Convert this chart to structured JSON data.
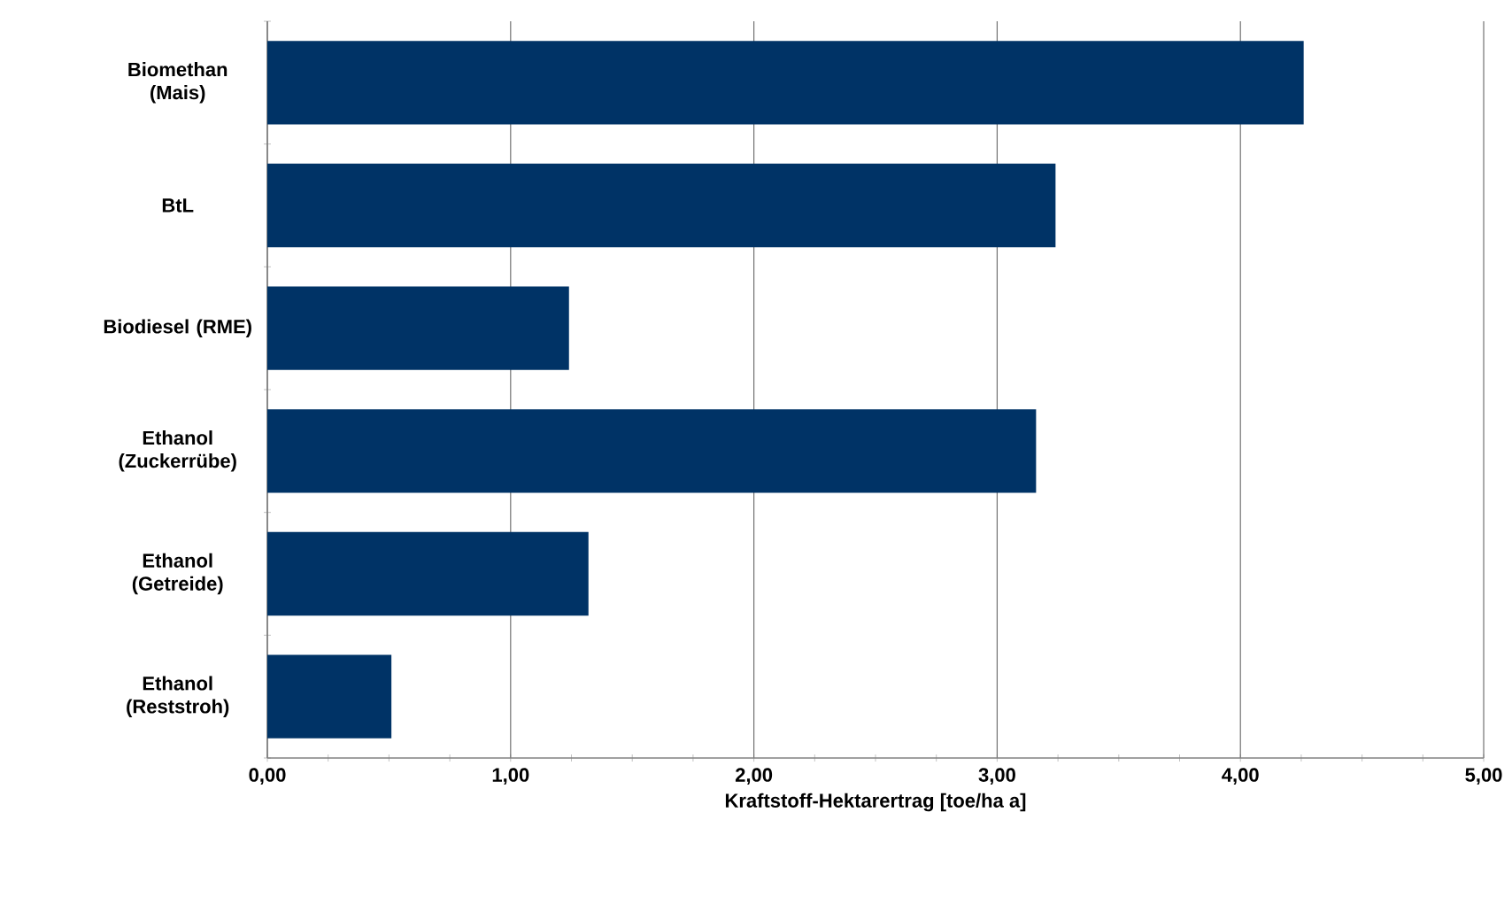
{
  "chart_data": {
    "type": "bar",
    "orientation": "horizontal",
    "xlabel": "Kraftstoff-Hektarertrag [toe/ha a]",
    "categories": [
      "Biomethan (Mais)",
      "BtL",
      "Biodiesel (RME)",
      "Ethanol (Zuckerrübe)",
      "Ethanol (Getreide)",
      "Ethanol (Reststroh)"
    ],
    "values": [
      4.26,
      3.24,
      1.24,
      3.16,
      1.32,
      0.51
    ],
    "color": "#003366",
    "xlim": [
      0,
      5
    ],
    "xticks": [
      {
        "value": 0,
        "label": "0,00"
      },
      {
        "value": 1,
        "label": "1,00"
      },
      {
        "value": 2,
        "label": "2,00"
      },
      {
        "value": 3,
        "label": "3,00"
      },
      {
        "value": 4,
        "label": "4,00"
      },
      {
        "value": 5,
        "label": "5,00"
      }
    ],
    "grid": "x",
    "legend": false
  }
}
